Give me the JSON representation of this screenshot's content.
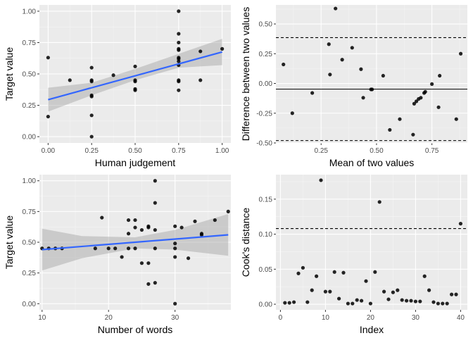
{
  "colors": {
    "panel": "#ebebeb",
    "point": "#000000",
    "fit_line": "#3366ff",
    "ribbon": "#999999"
  },
  "chart_data": [
    {
      "type": "scatter",
      "xlabel": "Human judgement",
      "ylabel": "Target value",
      "xlim": [
        -0.05,
        1.05
      ],
      "ylim": [
        -0.05,
        1.05
      ],
      "xticks": [
        0.0,
        0.25,
        0.5,
        0.75,
        1.0
      ],
      "xtick_labels": [
        "0.00",
        "0.25",
        "0.50",
        "0.75",
        "1.00"
      ],
      "yticks": [
        0.0,
        0.25,
        0.5,
        0.75,
        1.0
      ],
      "ytick_labels": [
        "0.00",
        "0.25",
        "0.50",
        "0.75",
        "1.00"
      ],
      "points": [
        [
          0.0,
          0.63
        ],
        [
          0.0,
          0.16
        ],
        [
          0.125,
          0.45
        ],
        [
          0.25,
          0.55
        ],
        [
          0.25,
          0.45
        ],
        [
          0.25,
          0.44
        ],
        [
          0.25,
          0.33
        ],
        [
          0.25,
          0.32
        ],
        [
          0.25,
          0.17
        ],
        [
          0.25,
          0.0
        ],
        [
          0.375,
          0.49
        ],
        [
          0.5,
          0.56
        ],
        [
          0.5,
          0.45
        ],
        [
          0.5,
          0.44
        ],
        [
          0.5,
          0.38
        ],
        [
          0.5,
          0.37
        ],
        [
          0.75,
          1.0
        ],
        [
          0.75,
          0.82
        ],
        [
          0.75,
          0.75
        ],
        [
          0.75,
          0.7
        ],
        [
          0.75,
          0.69
        ],
        [
          0.75,
          0.63
        ],
        [
          0.75,
          0.62
        ],
        [
          0.75,
          0.6
        ],
        [
          0.75,
          0.57
        ],
        [
          0.75,
          0.45
        ],
        [
          0.75,
          0.44
        ],
        [
          0.75,
          0.37
        ],
        [
          0.875,
          0.68
        ],
        [
          0.875,
          0.45
        ],
        [
          1.0,
          0.7
        ]
      ],
      "fit": {
        "x": [
          0.0,
          1.0
        ],
        "y": [
          0.295,
          0.675
        ]
      },
      "ribbon": {
        "x": [
          0.0,
          0.25,
          0.5,
          0.75,
          1.0
        ],
        "upper": [
          0.39,
          0.43,
          0.54,
          0.66,
          0.78
        ],
        "lower": [
          0.2,
          0.33,
          0.45,
          0.55,
          0.57
        ]
      }
    },
    {
      "type": "scatter",
      "xlabel": "Mean of two values",
      "ylabel": "Difference between two values",
      "xlim": [
        0.046,
        0.91
      ],
      "ylim": [
        -0.5,
        0.66
      ],
      "xticks": [
        0.25,
        0.5,
        0.75
      ],
      "xtick_labels": [
        "0.25",
        "0.50",
        "0.75"
      ],
      "yticks": [
        -0.5,
        -0.25,
        0.0,
        0.25,
        0.5
      ],
      "ytick_labels": [
        "-0.50",
        "-0.25",
        "0.00",
        "0.25",
        "0.50"
      ],
      "hlines": [
        {
          "y": 0.385,
          "style": "dashed"
        },
        {
          "y": -0.048,
          "style": "solid"
        },
        {
          "y": -0.48,
          "style": "dashed"
        }
      ],
      "points": [
        [
          0.08,
          0.16
        ],
        [
          0.12,
          -0.25
        ],
        [
          0.21,
          -0.08
        ],
        [
          0.285,
          0.33
        ],
        [
          0.29,
          0.075
        ],
        [
          0.315,
          0.63
        ],
        [
          0.345,
          0.2
        ],
        [
          0.39,
          0.3
        ],
        [
          0.43,
          0.12
        ],
        [
          0.44,
          -0.12
        ],
        [
          0.475,
          -0.05
        ],
        [
          0.48,
          -0.05
        ],
        [
          0.53,
          0.065
        ],
        [
          0.56,
          -0.39
        ],
        [
          0.605,
          -0.3
        ],
        [
          0.665,
          -0.43
        ],
        [
          0.67,
          -0.17
        ],
        [
          0.68,
          -0.15
        ],
        [
          0.69,
          -0.13
        ],
        [
          0.7,
          -0.12
        ],
        [
          0.715,
          -0.08
        ],
        [
          0.72,
          -0.07
        ],
        [
          0.75,
          -0.005
        ],
        [
          0.78,
          -0.2
        ],
        [
          0.785,
          0.065
        ],
        [
          0.86,
          -0.3
        ],
        [
          0.88,
          0.25
        ]
      ]
    },
    {
      "type": "scatter",
      "xlabel": "Number of words",
      "ylabel": "Target value",
      "xlim": [
        9.6,
        38.4
      ],
      "ylim": [
        -0.05,
        1.05
      ],
      "xticks": [
        10,
        20,
        30
      ],
      "xtick_labels": [
        "10",
        "20",
        "30"
      ],
      "yticks": [
        0.0,
        0.25,
        0.5,
        0.75,
        1.0
      ],
      "ytick_labels": [
        "0.00",
        "0.25",
        "0.50",
        "0.75",
        "1.00"
      ],
      "points": [
        [
          10,
          0.45
        ],
        [
          11,
          0.45
        ],
        [
          12,
          0.45
        ],
        [
          13,
          0.45
        ],
        [
          18,
          0.45
        ],
        [
          19,
          0.7
        ],
        [
          20,
          0.45
        ],
        [
          21,
          0.45
        ],
        [
          22,
          0.38
        ],
        [
          23,
          0.68
        ],
        [
          23,
          0.57
        ],
        [
          23,
          0.45
        ],
        [
          24,
          0.68
        ],
        [
          24,
          0.62
        ],
        [
          24,
          0.45
        ],
        [
          25,
          0.6
        ],
        [
          25,
          0.33
        ],
        [
          26,
          0.63
        ],
        [
          26,
          0.62
        ],
        [
          26,
          0.33
        ],
        [
          26,
          0.16
        ],
        [
          27,
          1.0
        ],
        [
          27,
          0.82
        ],
        [
          27,
          0.6
        ],
        [
          27,
          0.45
        ],
        [
          27,
          0.17
        ],
        [
          30,
          0.63
        ],
        [
          30,
          0.49
        ],
        [
          30,
          0.45
        ],
        [
          30,
          0.38
        ],
        [
          30,
          0.0
        ],
        [
          31,
          0.62
        ],
        [
          32,
          0.37
        ],
        [
          33,
          0.67
        ],
        [
          34,
          0.57
        ],
        [
          34,
          0.56
        ],
        [
          36,
          0.68
        ],
        [
          38,
          0.75
        ]
      ],
      "fit": {
        "x": [
          10,
          38
        ],
        "y": [
          0.44,
          0.56
        ]
      },
      "ribbon": {
        "x": [
          10,
          16,
          24,
          30,
          38
        ],
        "upper": [
          0.61,
          0.55,
          0.54,
          0.6,
          0.73
        ],
        "lower": [
          0.27,
          0.37,
          0.45,
          0.44,
          0.39
        ]
      }
    },
    {
      "type": "scatter",
      "xlabel": "Index",
      "ylabel": "Cook's distance",
      "xlim": [
        -1,
        41.5
      ],
      "ylim": [
        -0.008,
        0.185
      ],
      "xticks": [
        0,
        10,
        20,
        30,
        40
      ],
      "xtick_labels": [
        "0",
        "10",
        "20",
        "30",
        "40"
      ],
      "yticks": [
        0.0,
        0.05,
        0.1,
        0.15
      ],
      "ytick_labels": [
        "0.00",
        "0.05",
        "0.10",
        "0.15"
      ],
      "hlines": [
        {
          "y": 0.108,
          "style": "dashed"
        }
      ],
      "points": [
        [
          1,
          0.002
        ],
        [
          2,
          0.002
        ],
        [
          3,
          0.003
        ],
        [
          4,
          0.044
        ],
        [
          5,
          0.052
        ],
        [
          6,
          0.003
        ],
        [
          7,
          0.02
        ],
        [
          8,
          0.04
        ],
        [
          9,
          0.177
        ],
        [
          10,
          0.018
        ],
        [
          11,
          0.018
        ],
        [
          12,
          0.046
        ],
        [
          13,
          0.008
        ],
        [
          14,
          0.045
        ],
        [
          15,
          0.001
        ],
        [
          16,
          0.001
        ],
        [
          17,
          0.006
        ],
        [
          18,
          0.005
        ],
        [
          19,
          0.033
        ],
        [
          20,
          0.001
        ],
        [
          21,
          0.046
        ],
        [
          22,
          0.146
        ],
        [
          23,
          0.018
        ],
        [
          24,
          0.007
        ],
        [
          25,
          0.017
        ],
        [
          26,
          0.02
        ],
        [
          27,
          0.006
        ],
        [
          28,
          0.005
        ],
        [
          29,
          0.005
        ],
        [
          30,
          0.004
        ],
        [
          31,
          0.004
        ],
        [
          32,
          0.04
        ],
        [
          33,
          0.02
        ],
        [
          34,
          0.003
        ],
        [
          35,
          0.001
        ],
        [
          36,
          0.001
        ],
        [
          37,
          0.001
        ],
        [
          38,
          0.014
        ],
        [
          39,
          0.014
        ],
        [
          40,
          0.115
        ]
      ]
    }
  ]
}
